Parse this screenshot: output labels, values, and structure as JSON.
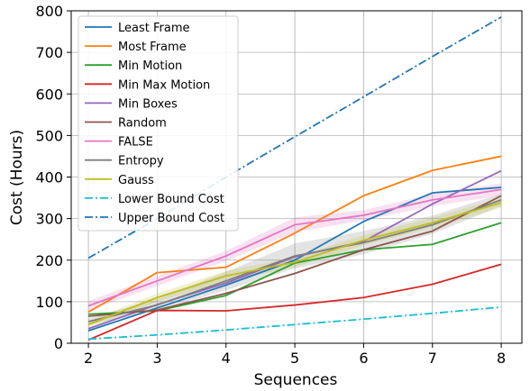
{
  "chart_data": {
    "type": "line",
    "xlabel": "Sequences",
    "ylabel": "Cost (Hours)",
    "x": [
      2,
      3,
      4,
      5,
      6,
      7,
      8
    ],
    "xlim": [
      1.75,
      8.3
    ],
    "ylim": [
      0,
      800
    ],
    "xticks": [
      "2",
      "3",
      "4",
      "5",
      "6",
      "7",
      "8"
    ],
    "yticks": [
      "0",
      "100",
      "200",
      "300",
      "400",
      "500",
      "600",
      "700",
      "800"
    ],
    "grid": true,
    "legend_position": "upper-left",
    "series": [
      {
        "name": "Least Frame",
        "color": "#1f77b4",
        "style": "solid",
        "values": [
          30,
          85,
          140,
          200,
          293,
          362,
          375
        ]
      },
      {
        "name": "Most Frame",
        "color": "#ff7f0e",
        "style": "solid",
        "values": [
          75,
          170,
          183,
          265,
          355,
          416,
          450
        ]
      },
      {
        "name": "Min Motion",
        "color": "#2ca02c",
        "style": "solid",
        "values": [
          70,
          78,
          115,
          193,
          225,
          238,
          290
        ]
      },
      {
        "name": "Min Max Motion",
        "color": "#d62728",
        "style": "solid",
        "values": [
          8,
          79,
          78,
          92,
          110,
          142,
          190
        ]
      },
      {
        "name": "Min Boxes",
        "color": "#9467bd",
        "style": "solid",
        "values": [
          35,
          93,
          145,
          208,
          245,
          335,
          415
        ]
      },
      {
        "name": "Random",
        "color": "#8c564b",
        "style": "solid",
        "values": [
          65,
          80,
          120,
          168,
          225,
          270,
          355
        ]
      },
      {
        "name": "FALSE",
        "color": "#e377c2",
        "style": "solid",
        "values": [
          90,
          150,
          210,
          285,
          308,
          345,
          370
        ],
        "band": [
          12,
          12,
          12,
          18,
          12,
          15,
          15
        ]
      },
      {
        "name": "Entropy",
        "color": "#7f7f7f",
        "style": "solid",
        "values": [
          52,
          92,
          150,
          210,
          242,
          285,
          345
        ],
        "band": [
          8,
          14,
          22,
          30,
          28,
          22,
          15
        ]
      },
      {
        "name": "Gauss",
        "color": "#bcbd22",
        "style": "solid",
        "values": [
          45,
          110,
          162,
          195,
          248,
          290,
          338
        ],
        "band": [
          8,
          10,
          12,
          12,
          12,
          12,
          12
        ]
      },
      {
        "name": "Lower Bound Cost",
        "color": "#17becf",
        "style": "dashdot",
        "values": [
          10,
          20,
          32,
          45,
          58,
          72,
          87
        ]
      },
      {
        "name": "Upper Bound Cost",
        "color": "#1f77b4",
        "style": "dashdot",
        "values": [
          205,
          300,
          400,
          497,
          593,
          690,
          785
        ]
      }
    ]
  }
}
